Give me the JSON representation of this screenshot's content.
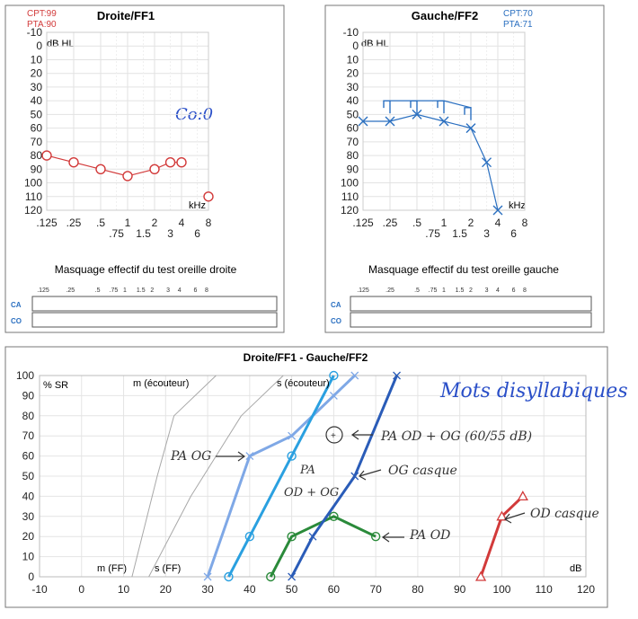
{
  "left_audiogram": {
    "title": "Droite/FF1",
    "cpt": "CPT:99",
    "pta": "PTA:90",
    "unit": "dB HL",
    "khz": "kHz",
    "annotation": "Co:0",
    "mask_title": "Masquage effectif du test oreille droite",
    "mask_ticks": [
      ".125",
      ".25",
      ".5",
      ".75",
      "1",
      "1.5",
      "2",
      "3",
      "4",
      "6",
      "8"
    ],
    "ca": "CA",
    "co": "CO"
  },
  "right_audiogram": {
    "title": "Gauche/FF2",
    "cpt": "CPT:70",
    "pta": "PTA:71",
    "unit": "dB HL",
    "khz": "kHz",
    "mask_title": "Masquage effectif du test oreille gauche",
    "mask_ticks": [
      ".125",
      ".25",
      ".5",
      ".75",
      "1",
      "1.5",
      "2",
      "3",
      "4",
      "6",
      "8"
    ],
    "ca": "CA",
    "co": "CO"
  },
  "speech": {
    "title": "Droite/FF1 - Gauche/FF2",
    "ylabel": "% SR",
    "xlabel": "dB",
    "ref_m_ecouteur": "m (écouteur)",
    "ref_s_ecouteur": "s (écouteur)",
    "ref_m_ff": "m (FF)",
    "ref_s_ff": "s (FF)",
    "hand_title": "Mots disyllabiques",
    "hand_pa_og": "PA OG",
    "hand_pa_od_og_1": "PA",
    "hand_pa_od_og_2": "OD + OG",
    "hand_pa_od_og_levels": "PA OD + OG (60/55 dB)",
    "hand_og_casque": "OG casque",
    "hand_pa_od": "PA OD",
    "hand_od_casque": "OD casque"
  },
  "chart_data": [
    {
      "type": "line",
      "title": "Droite/FF1",
      "x_tick_labels": [
        ".125",
        ".25",
        ".5",
        "1",
        "2",
        "4",
        "8",
        ".75",
        "1.5",
        "3",
        "6"
      ],
      "y_ticks": [
        -10,
        0,
        10,
        20,
        30,
        40,
        50,
        60,
        70,
        80,
        90,
        100,
        110,
        120
      ],
      "ylim": [
        -10,
        120
      ],
      "y_inverted": true,
      "series": [
        {
          "color": "#d23a3a",
          "x": [
            0.125,
            0.25,
            0.5,
            1,
            2,
            3,
            4
          ],
          "y": [
            80,
            85,
            90,
            95,
            90,
            85,
            85
          ]
        },
        {
          "color": "#d23a3a",
          "x": [
            8
          ],
          "y": [
            110
          ]
        }
      ]
    },
    {
      "type": "line",
      "title": "Gauche/FF2",
      "x_tick_labels": [
        ".125",
        ".25",
        ".5",
        "1",
        "2",
        "4",
        "8",
        ".75",
        "1.5",
        "3",
        "6"
      ],
      "y_ticks": [
        -10,
        0,
        10,
        20,
        30,
        40,
        50,
        60,
        70,
        80,
        90,
        100,
        110,
        120
      ],
      "ylim": [
        -10,
        120
      ],
      "y_inverted": true,
      "series": [
        {
          "color": "#2a6fc0",
          "x": [
            0.125,
            0.25,
            0.5,
            1,
            2,
            3,
            4
          ],
          "y": [
            55,
            55,
            50,
            55,
            60,
            85,
            120
          ]
        },
        {
          "color": "#2a6fc0",
          "x": [
            0.25,
            0.5,
            1,
            2
          ],
          "y": [
            40,
            40,
            40,
            45
          ]
        }
      ]
    },
    {
      "type": "line",
      "title": "Droite/FF1 - Gauche/FF2",
      "x_ticks": [
        -10,
        0,
        10,
        20,
        30,
        40,
        50,
        60,
        70,
        80,
        90,
        100,
        110,
        120
      ],
      "y_ticks": [
        0,
        10,
        20,
        30,
        40,
        50,
        60,
        70,
        80,
        90,
        100
      ],
      "xlim": [
        -10,
        120
      ],
      "ylim": [
        0,
        100
      ],
      "series": [
        {
          "color": "#a8a8a8",
          "x": [
            12,
            18,
            22,
            32
          ],
          "y": [
            0,
            50,
            80,
            100
          ]
        },
        {
          "color": "#a8a8a8",
          "x": [
            16,
            26,
            38,
            48
          ],
          "y": [
            0,
            40,
            80,
            100
          ]
        },
        {
          "color": "#7fa8e6",
          "x": [
            30,
            40,
            50,
            60,
            65
          ],
          "y": [
            0,
            60,
            70,
            90,
            100
          ]
        },
        {
          "color": "#2aa0e0",
          "x": [
            35,
            40,
            50,
            60
          ],
          "y": [
            0,
            20,
            60,
            100
          ]
        },
        {
          "color": "#2a8a3a",
          "x": [
            45,
            50,
            60,
            70
          ],
          "y": [
            0,
            20,
            30,
            20
          ]
        },
        {
          "color": "#2a5cb8",
          "x": [
            50,
            55,
            65,
            75
          ],
          "y": [
            0,
            20,
            50,
            100
          ]
        },
        {
          "color": "#d23a3a",
          "x": [
            95,
            100,
            105
          ],
          "y": [
            0,
            30,
            40
          ]
        }
      ]
    }
  ]
}
